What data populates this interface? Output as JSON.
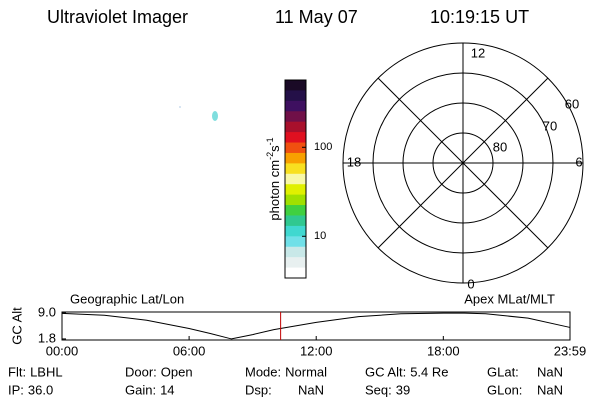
{
  "header": {
    "instrument": "Ultraviolet Imager",
    "date": "11 May 07",
    "time": "10:19:15 UT"
  },
  "colorbar": {
    "label": [
      "photon cm",
      "-2",
      "s",
      "-1"
    ],
    "log": true,
    "clim": [
      3.4,
      570
    ],
    "ticks": [
      10,
      100
    ],
    "colors": [
      "#1a0a26",
      "#241048",
      "#3e1060",
      "#701048",
      "#a8102c",
      "#e01020",
      "#f05010",
      "#f8a000",
      "#f8e020",
      "#f8f8a8",
      "#e0f000",
      "#a0e000",
      "#40d040",
      "#30c890",
      "#40d8d0",
      "#70e0e8",
      "#c8e8e8",
      "#e8f0f0",
      "#ffffff"
    ]
  },
  "polar": {
    "lat_min": 50,
    "lat_rings": [
      60,
      70,
      80
    ],
    "mlt_labels": {
      "top": "12",
      "left": "18",
      "right": "6",
      "bottom": "0"
    }
  },
  "altitude_plot": {
    "ylabel": "GC Alt",
    "left_label": "Geographic Lat/Lon",
    "right_label": "Apex MLat/MLT",
    "x": [
      0,
      2,
      4,
      6,
      7,
      8,
      9,
      10,
      12,
      14,
      16,
      18,
      19,
      20,
      22,
      23.98
    ],
    "values": [
      8.9,
      8.4,
      7.0,
      4.7,
      3.3,
      1.8,
      3.0,
      4.4,
      6.4,
      8.0,
      8.8,
      9.0,
      9.0,
      8.8,
      7.6,
      5.0
    ],
    "current_x": 10.32,
    "xlim": [
      0,
      23.98
    ],
    "ylim": [
      1.5,
      9.3
    ],
    "xticks": [
      {
        "value": 0,
        "label": "00:00"
      },
      {
        "value": 6,
        "label": "06:00"
      },
      {
        "value": 12,
        "label": "12:00"
      },
      {
        "value": 18,
        "label": "18:00"
      },
      {
        "value": 23.98,
        "label": "23:59"
      }
    ],
    "yticks": [
      {
        "value": 9.0,
        "label": "9.0"
      },
      {
        "value": 1.8,
        "label": "1.8"
      }
    ]
  },
  "fields": [
    {
      "label": "Flt:",
      "value": "LBHL"
    },
    {
      "label": "Door:",
      "value": "Open"
    },
    {
      "label": "Mode:",
      "value": "Normal"
    },
    {
      "label": "GC Alt:",
      "value": "5.4 Re"
    },
    {
      "label": "GLat:",
      "value": "NaN"
    },
    {
      "label": "IP:",
      "value": "36.0"
    },
    {
      "label": "Gain:",
      "value": "14"
    },
    {
      "label": "Dsp:",
      "value": "NaN"
    },
    {
      "label": "Seq:",
      "value": "39"
    },
    {
      "label": "GLon:",
      "value": "NaN"
    }
  ]
}
